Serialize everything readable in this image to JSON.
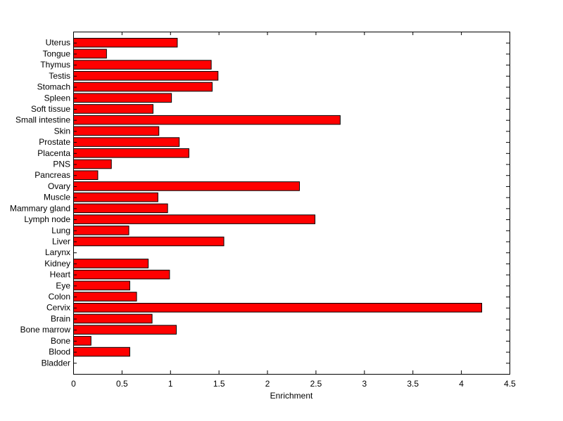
{
  "chart_data": {
    "type": "bar",
    "orientation": "horizontal",
    "title": "",
    "xlabel": "Enrichment",
    "ylabel": "",
    "xlim": [
      0,
      4.5
    ],
    "xticks": [
      "0",
      "0.5",
      "1",
      "1.5",
      "2",
      "2.5",
      "3",
      "3.5",
      "4",
      "4.5"
    ],
    "grid": false,
    "bar_color": "#ff0000",
    "edge_color": "#000000",
    "categories": [
      "Bladder",
      "Blood",
      "Bone",
      "Bone marrow",
      "Brain",
      "Cervix",
      "Colon",
      "Eye",
      "Heart",
      "Kidney",
      "Larynx",
      "Liver",
      "Lung",
      "Lymph node",
      "Mammary gland",
      "Muscle",
      "Ovary",
      "Pancreas",
      "PNS",
      "Placenta",
      "Prostate",
      "Skin",
      "Small intestine",
      "Soft tissue",
      "Spleen",
      "Stomach",
      "Testis",
      "Thymus",
      "Tongue",
      "Uterus"
    ],
    "values": [
      0,
      0.58,
      0.18,
      1.06,
      0.81,
      4.21,
      0.65,
      0.58,
      0.99,
      0.77,
      0,
      1.55,
      0.57,
      2.49,
      0.97,
      0.87,
      2.33,
      0.25,
      0.39,
      1.19,
      1.09,
      0.88,
      2.75,
      0.82,
      1.01,
      1.43,
      1.49,
      1.42,
      0.34,
      1.07
    ]
  }
}
